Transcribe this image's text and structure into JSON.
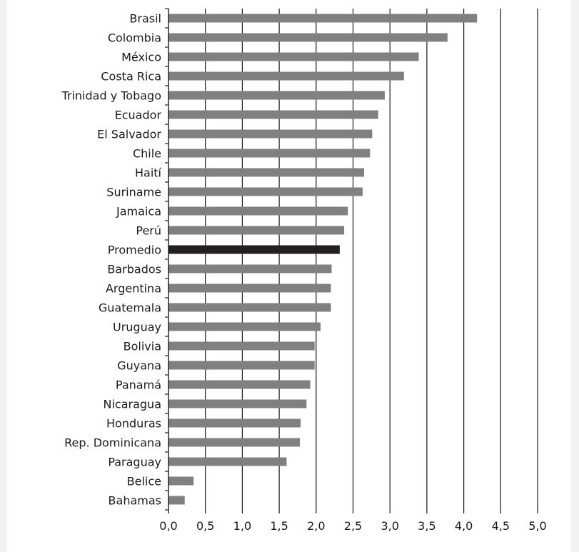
{
  "chart_data": {
    "type": "bar",
    "orientation": "horizontal",
    "title": "",
    "xlabel": "",
    "ylabel": "",
    "xlim": [
      0,
      5
    ],
    "x_ticks": [
      "0,0",
      "0,5",
      "1,0",
      "1,5",
      "2,0",
      "2,5",
      "3,0",
      "3,5",
      "4,0",
      "4,5",
      "5,0"
    ],
    "grid": "vertical",
    "legend": "none",
    "bar_color": "#808080",
    "highlight_color": "#231f20",
    "highlight_category": "Promedio",
    "categories": [
      "Brasil",
      "Colombia",
      "México",
      "Costa Rica",
      "Trinidad y Tobago",
      "Ecuador",
      "El Salvador",
      "Chile",
      "Haití",
      "Suriname",
      "Jamaica",
      "Perú",
      "Promedio",
      "Barbados",
      "Argentina",
      "Guatemala",
      "Uruguay",
      "Bolivia",
      "Guyana",
      "Panamá",
      "Nicaragua",
      "Honduras",
      "Rep. Dominicana",
      "Paraguay",
      "Belice",
      "Bahamas"
    ],
    "values": [
      4.18,
      3.78,
      3.39,
      3.19,
      2.93,
      2.84,
      2.76,
      2.73,
      2.65,
      2.63,
      2.43,
      2.38,
      2.32,
      2.21,
      2.2,
      2.2,
      2.06,
      1.98,
      1.98,
      1.92,
      1.87,
      1.79,
      1.78,
      1.6,
      0.34,
      0.22
    ]
  }
}
